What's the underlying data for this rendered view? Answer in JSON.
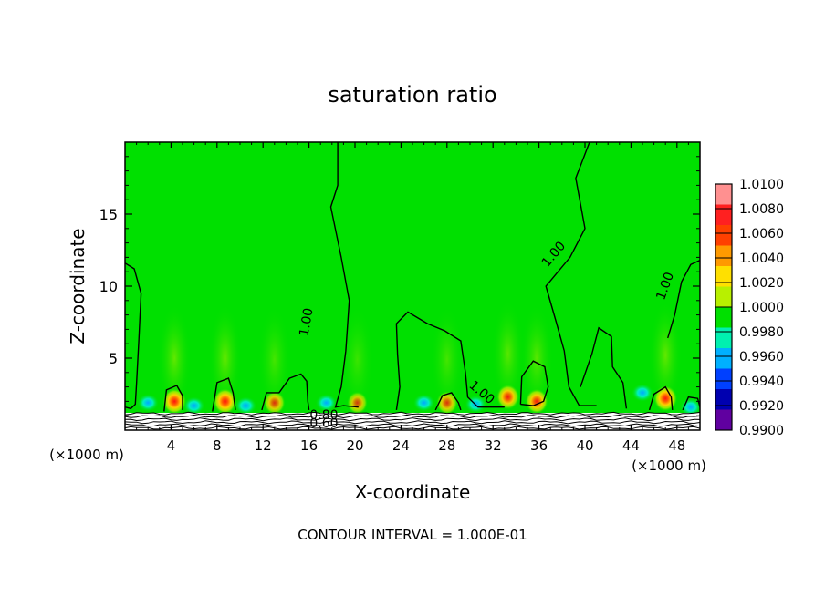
{
  "chart_data": {
    "type": "heatmap",
    "title": "saturation ratio",
    "xlabel": "X-coordinate",
    "ylabel": "Z-coordinate",
    "x_unit_left": "(×1000 m)",
    "x_unit_right": "(×1000 m)",
    "footer": "CONTOUR INTERVAL = 1.000E-01",
    "xlim": [
      0,
      50
    ],
    "ylim": [
      0,
      20
    ],
    "xticks": [
      "4",
      "8",
      "12",
      "16",
      "20",
      "24",
      "28",
      "32",
      "36",
      "40",
      "44",
      "48"
    ],
    "xtick_values": [
      4,
      8,
      12,
      16,
      20,
      24,
      28,
      32,
      36,
      40,
      44,
      48
    ],
    "yticks": [
      "5",
      "10",
      "15"
    ],
    "ytick_values": [
      5,
      10,
      15
    ],
    "colorbar": {
      "levels": [
        "1.0100",
        "1.0080",
        "1.0060",
        "1.0040",
        "1.0020",
        "1.0000",
        "0.9980",
        "0.9960",
        "0.9940",
        "0.9920",
        "0.9900"
      ],
      "colors": [
        "#ff9090",
        "#ff2020",
        "#ff4000",
        "#ff9a00",
        "#ffe000",
        "#b8f000",
        "#00e000",
        "#00f0b0",
        "#00b0ff",
        "#0040ff",
        "#0000b0",
        "#6000a0"
      ]
    },
    "background_value_color": "#00e000",
    "contour_labels": [
      {
        "text": "1.00",
        "x": 15.8,
        "y": 7.5,
        "angle": -80
      },
      {
        "text": "1.00",
        "x": 37.3,
        "y": 12.2,
        "angle": -50
      },
      {
        "text": "1.00",
        "x": 47.0,
        "y": 10.0,
        "angle": -70
      },
      {
        "text": "1.00",
        "x": 31.0,
        "y": 2.6,
        "angle": 40
      },
      {
        "text": "0.80",
        "x": 17.3,
        "y": 1.0,
        "angle": 0
      },
      {
        "text": "0.60",
        "x": 17.3,
        "y": 0.45,
        "angle": 0
      }
    ],
    "contours_1_00": [
      [
        [
          0,
          11.6
        ],
        [
          0.8,
          11.2
        ],
        [
          1.4,
          9.5
        ],
        [
          1.2,
          6.2
        ],
        [
          1.0,
          3.2
        ],
        [
          0.9,
          1.8
        ],
        [
          0.5,
          1.5
        ],
        [
          0,
          1.6
        ]
      ],
      [
        [
          18.5,
          20
        ],
        [
          18.5,
          17
        ],
        [
          17.9,
          15.5
        ],
        [
          18.8,
          12
        ],
        [
          19.5,
          9
        ],
        [
          19.2,
          5.5
        ],
        [
          18.8,
          3.0
        ],
        [
          18.3,
          1.6
        ],
        [
          19.0,
          1.7
        ],
        [
          20.3,
          1.6
        ]
      ],
      [
        [
          23.6,
          1.4
        ],
        [
          23.9,
          3.0
        ],
        [
          23.7,
          5.3
        ],
        [
          23.6,
          7.4
        ],
        [
          24.6,
          8.2
        ],
        [
          26.3,
          7.4
        ],
        [
          27.8,
          6.9
        ],
        [
          29.2,
          6.2
        ],
        [
          29.6,
          4.0
        ],
        [
          29.8,
          2.3
        ],
        [
          30.7,
          1.6
        ],
        [
          33.0,
          1.6
        ]
      ],
      [
        [
          40.4,
          20
        ],
        [
          39.2,
          17.5
        ],
        [
          40.0,
          14.0
        ],
        [
          38.7,
          12.0
        ],
        [
          36.6,
          10.0
        ],
        [
          37.5,
          7.5
        ],
        [
          38.2,
          5.5
        ],
        [
          38.6,
          3.0
        ],
        [
          39.5,
          1.7
        ],
        [
          41.0,
          1.7
        ]
      ],
      [
        [
          47.2,
          6.4
        ],
        [
          47.8,
          8.0
        ],
        [
          48.4,
          10.3
        ],
        [
          49.2,
          11.5
        ],
        [
          50,
          11.8
        ]
      ],
      [
        [
          39.6,
          3.0
        ],
        [
          40.6,
          5.3
        ],
        [
          41.2,
          7.1
        ],
        [
          42.3,
          6.5
        ],
        [
          42.4,
          4.4
        ],
        [
          42.9,
          3.8
        ],
        [
          43.3,
          3.3
        ],
        [
          43.6,
          1.5
        ]
      ]
    ],
    "contours_small": [
      [
        [
          3.4,
          1.3
        ],
        [
          3.6,
          2.8
        ],
        [
          4.5,
          3.1
        ],
        [
          5.0,
          2.4
        ],
        [
          5.0,
          1.4
        ]
      ],
      [
        [
          7.6,
          1.3
        ],
        [
          8.0,
          3.3
        ],
        [
          9.0,
          3.6
        ],
        [
          9.4,
          2.6
        ],
        [
          9.6,
          1.4
        ]
      ],
      [
        [
          11.9,
          1.4
        ],
        [
          12.3,
          2.6
        ],
        [
          13.4,
          2.6
        ],
        [
          14.3,
          3.6
        ],
        [
          15.3,
          3.9
        ],
        [
          15.8,
          3.4
        ],
        [
          15.9,
          2.0
        ],
        [
          16.0,
          1.4
        ]
      ],
      [
        [
          27.0,
          1.4
        ],
        [
          27.6,
          2.4
        ],
        [
          28.4,
          2.6
        ],
        [
          29.0,
          1.9
        ],
        [
          29.2,
          1.4
        ]
      ],
      [
        [
          34.4,
          1.8
        ],
        [
          34.5,
          3.7
        ],
        [
          35.5,
          4.8
        ],
        [
          36.5,
          4.4
        ],
        [
          36.8,
          3.0
        ],
        [
          36.4,
          2.0
        ],
        [
          35.5,
          1.7
        ],
        [
          34.4,
          1.8
        ]
      ],
      [
        [
          45.6,
          1.4
        ],
        [
          46.0,
          2.5
        ],
        [
          47.0,
          3.0
        ],
        [
          47.5,
          2.3
        ],
        [
          47.6,
          1.4
        ]
      ],
      [
        [
          48.5,
          1.4
        ],
        [
          49.0,
          2.3
        ],
        [
          49.8,
          2.2
        ],
        [
          50,
          1.6
        ]
      ]
    ],
    "hotspots": [
      {
        "x": 4.3,
        "y": 2.0,
        "strength": 1.0
      },
      {
        "x": 8.7,
        "y": 2.0,
        "strength": 1.0
      },
      {
        "x": 13.0,
        "y": 1.9,
        "strength": 0.7
      },
      {
        "x": 20.2,
        "y": 1.9,
        "strength": 0.6
      },
      {
        "x": 28.0,
        "y": 1.9,
        "strength": 0.7
      },
      {
        "x": 33.3,
        "y": 2.3,
        "strength": 0.9
      },
      {
        "x": 35.8,
        "y": 2.0,
        "strength": 0.9
      },
      {
        "x": 47.0,
        "y": 2.2,
        "strength": 1.0
      }
    ],
    "cool_spots": [
      {
        "x": 2.0,
        "y": 1.9
      },
      {
        "x": 6.0,
        "y": 1.7
      },
      {
        "x": 10.5,
        "y": 1.7
      },
      {
        "x": 17.5,
        "y": 1.9
      },
      {
        "x": 26.0,
        "y": 1.9
      },
      {
        "x": 30.5,
        "y": 1.8
      },
      {
        "x": 45.0,
        "y": 2.6
      },
      {
        "x": 49.2,
        "y": 1.6
      }
    ]
  }
}
